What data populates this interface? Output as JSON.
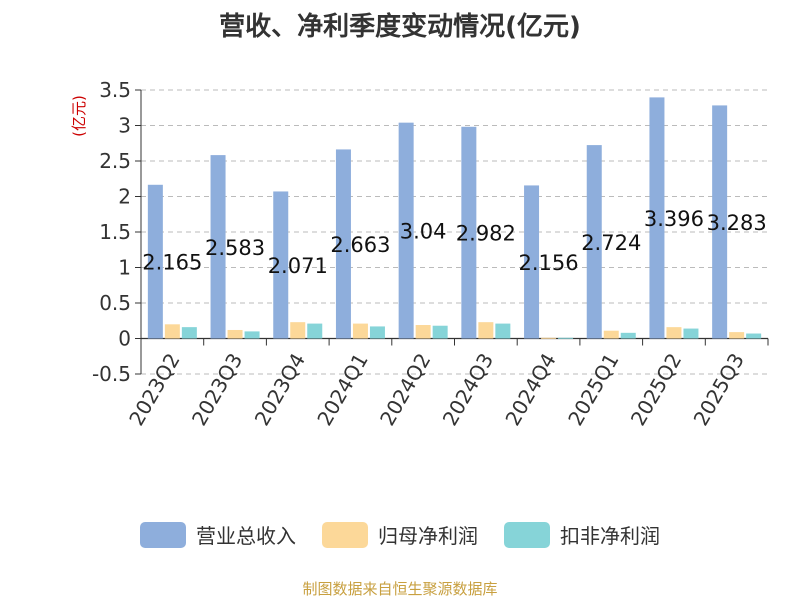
{
  "title": "营收、净利季度变动情况(亿元)",
  "source": "制图数据来自恒生聚源数据库",
  "source_color": "#c8a040",
  "colors": {
    "revenue": "#8eaedc",
    "net_profit": "#fcd899",
    "deducted_net_profit": "#86d4d8",
    "unit_label": "#cc0000",
    "grid": "#bbbbbb",
    "axis": "#333333"
  },
  "chart_data": {
    "type": "bar",
    "title": "营收、净利季度变动情况(亿元)",
    "ylabel": "(亿元)",
    "ylim": [
      -0.5,
      3.5
    ],
    "yticks": [
      -0.5,
      0,
      0.5,
      1,
      1.5,
      2,
      2.5,
      3,
      3.5
    ],
    "grid": true,
    "legend_position": "bottom",
    "categories": [
      "2023Q2",
      "2023Q3",
      "2023Q4",
      "2024Q1",
      "2024Q2",
      "2024Q3",
      "2024Q4",
      "2025Q1",
      "2025Q2",
      "2025Q3"
    ],
    "series": [
      {
        "name": "营业总收入",
        "values": [
          2.165,
          2.583,
          2.071,
          2.663,
          3.04,
          2.982,
          2.156,
          2.724,
          3.396,
          3.283
        ],
        "labels": [
          "2.165",
          "2.583",
          "2.071",
          "2.663",
          "3.04",
          "2.982",
          "2.156",
          "2.724",
          "3.396",
          "3.283"
        ]
      },
      {
        "name": "归母净利润",
        "values": [
          0.2,
          0.12,
          0.23,
          0.21,
          0.19,
          0.23,
          0.01,
          0.11,
          0.16,
          0.09
        ]
      },
      {
        "name": "扣非净利润",
        "values": [
          0.16,
          0.1,
          0.21,
          0.17,
          0.18,
          0.21,
          0.01,
          0.08,
          0.14,
          0.07
        ]
      }
    ]
  }
}
